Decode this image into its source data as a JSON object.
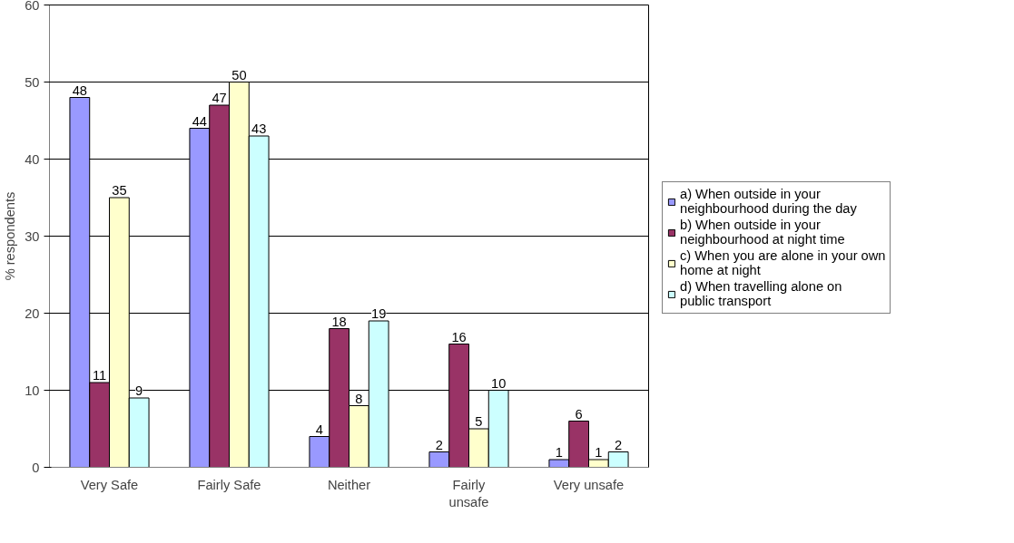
{
  "chart_data": {
    "type": "bar",
    "ylabel": "% respondents",
    "categories": [
      "Very Safe",
      "Fairly Safe",
      "Neither",
      "Fairly unsafe",
      "Very unsafe"
    ],
    "series": [
      {
        "name": "a) When outside in your neighbourhood during the day",
        "color": "#9999ff",
        "values": [
          48,
          44,
          4,
          2,
          1
        ]
      },
      {
        "name": "b) When outside in your neighbourhood at night time",
        "color": "#993366",
        "values": [
          11,
          47,
          18,
          16,
          6
        ]
      },
      {
        "name": "c) When you are alone in your own home at night",
        "color": "#ffffcc",
        "values": [
          35,
          50,
          8,
          5,
          1
        ]
      },
      {
        "name": "d) When travelling alone on public transport",
        "color": "#ccffff",
        "values": [
          9,
          43,
          19,
          10,
          2
        ]
      }
    ],
    "ylim": [
      0,
      60
    ],
    "yticks": [
      0,
      10,
      20,
      30,
      40,
      50,
      60
    ],
    "grid": "y",
    "legend": "right",
    "data_labels": true
  }
}
